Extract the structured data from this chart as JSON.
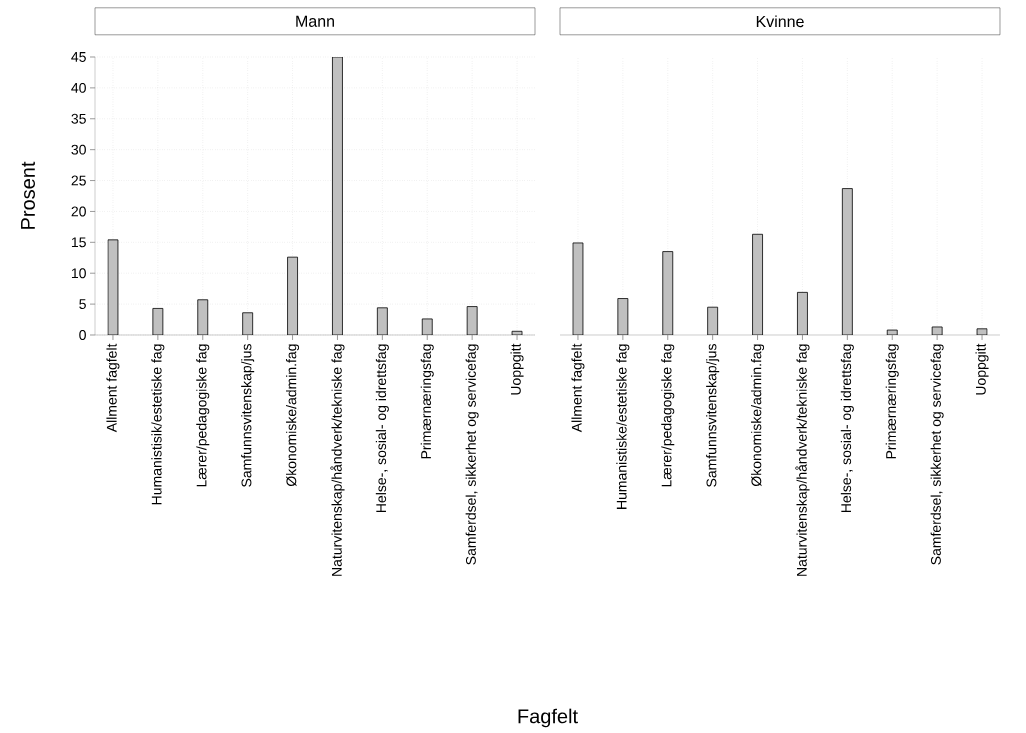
{
  "chart_data": [
    {
      "type": "bar",
      "title": "Mann",
      "xlabel": "Fagfelt",
      "ylabel": "Prosent",
      "categories": [
        "Allment fagfelt",
        "Humanistisik/estetiske fag",
        "Lærer/pedagogiske fag",
        "Samfunnsvitenskap/jus",
        "Økonomiske/admin.fag",
        "Naturvitenskap/håndverk/tekniske fag",
        "Helse-, sosial- og idrettsfag",
        "Primærnæringsfag",
        "Samferdsel, sikkerhet og servicefag",
        "Uoppgitt"
      ],
      "values": [
        15.4,
        4.3,
        5.7,
        3.6,
        12.6,
        45,
        4.4,
        2.6,
        4.6,
        0.6
      ],
      "color": "#c0c0c0",
      "ylim": [
        0,
        45
      ],
      "yticks": [
        0,
        5,
        10,
        15,
        20,
        25,
        30,
        35,
        40,
        45
      ],
      "grid": true
    },
    {
      "type": "bar",
      "title": "Kvinne",
      "categories": [
        "Allment fagfelt",
        "Humanistiske/estetiske fag",
        "Lærer/pedagogiske fag",
        "Samfunnsvitenskap/jus",
        "Økonomiske/admin.fag",
        "Naturvitenskap/håndverk/tekniske fag",
        "Helse-, sosial- og idrettsfag",
        "Primærnæringsfag",
        "Samferdsel, sikkerhet og servicefag",
        "Uoppgitt"
      ],
      "values": [
        14.9,
        5.9,
        13.5,
        4.5,
        16.3,
        6.9,
        23.7,
        0.8,
        1.3,
        1.0
      ],
      "color": "#c0c0c0",
      "ylim": [
        0,
        45
      ],
      "yticks": [
        0,
        5,
        10,
        15,
        20,
        25,
        30,
        35,
        40,
        45
      ],
      "grid": true,
      "tick_labels": "x"
    }
  ]
}
